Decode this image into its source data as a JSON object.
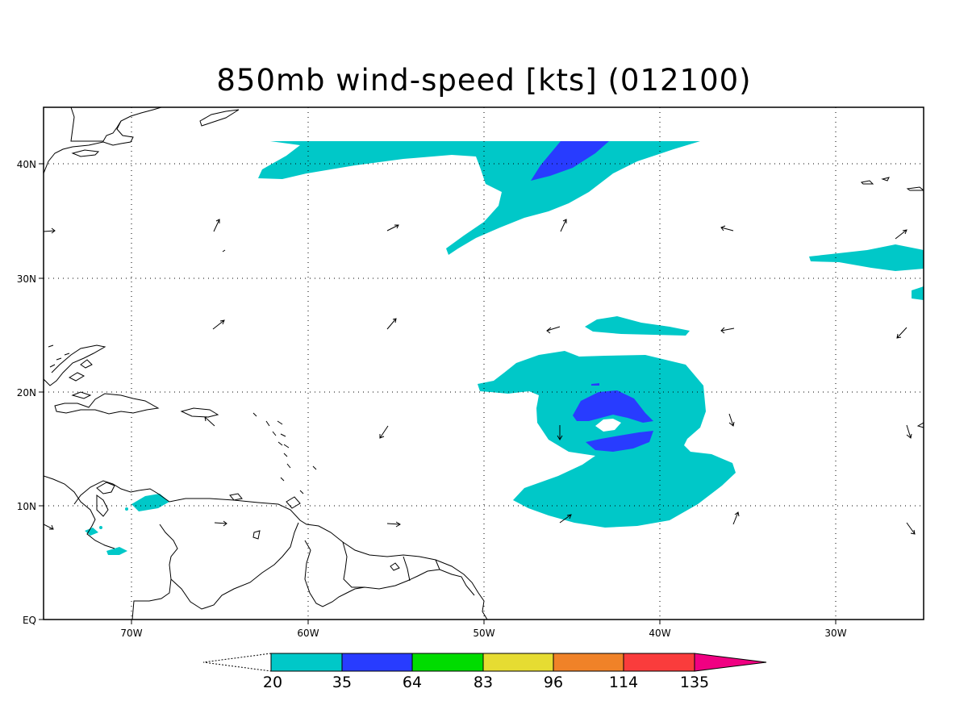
{
  "title": "850mb wind-speed [kts] (012100)",
  "lat_labels": [
    "40N",
    "30N",
    "20N",
    "10N",
    "EQ"
  ],
  "lon_labels": [
    "70W",
    "60W",
    "50W",
    "40W",
    "30W"
  ],
  "colorbar": {
    "labels": [
      "20",
      "35",
      "64",
      "83",
      "96",
      "114",
      "135"
    ],
    "colors": [
      "#00c8c8",
      "#283cff",
      "#00dc00",
      "#e6dc32",
      "#f08228",
      "#fa3c3c",
      "#f00082"
    ]
  },
  "wind_arrow_color": "#000000",
  "coastline_color": "#000000"
}
